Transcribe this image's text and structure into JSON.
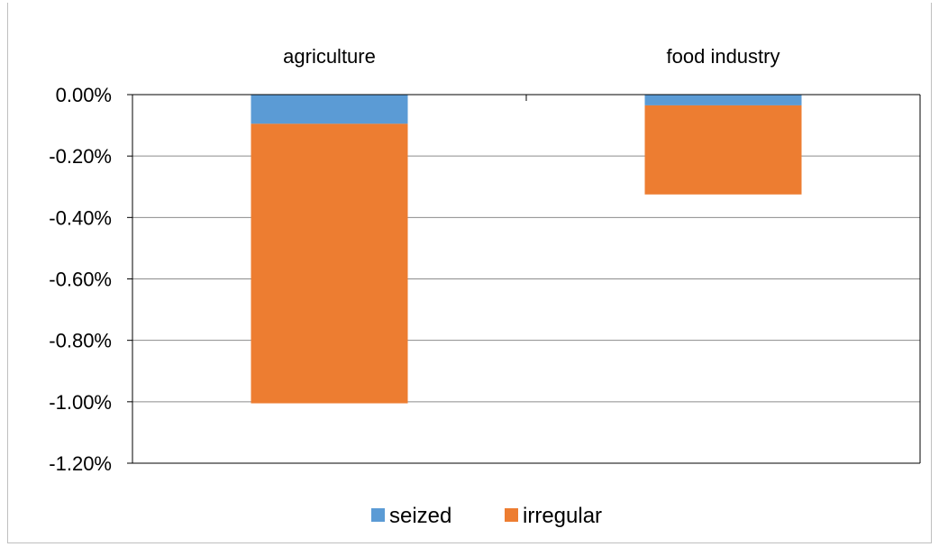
{
  "chart_data": {
    "type": "bar",
    "stacked": true,
    "categories": [
      "agriculture",
      "food industry"
    ],
    "series": [
      {
        "name": "seized",
        "values": [
          -0.095,
          -0.035
        ],
        "color": "#5b9bd5"
      },
      {
        "name": "irregular",
        "values": [
          -0.91,
          -0.29
        ],
        "color": "#ed7d31"
      }
    ],
    "ylim": [
      -1.2,
      0
    ],
    "yticks": [
      "0.00%",
      "-0.20%",
      "-0.40%",
      "-0.60%",
      "-0.80%",
      "-1.00%",
      "-1.20%"
    ],
    "ytick_values": [
      0,
      -0.2,
      -0.4,
      -0.6,
      -0.8,
      -1.0,
      -1.2
    ],
    "category_labels_position": "top",
    "grid": true,
    "legend": "bottom"
  }
}
